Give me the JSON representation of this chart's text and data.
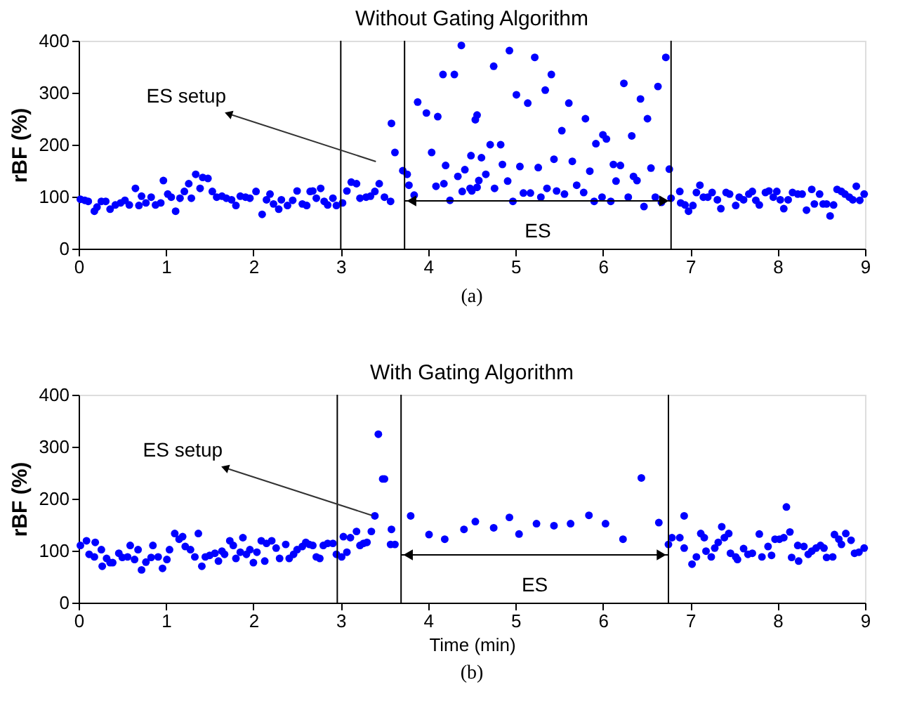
{
  "chart_data": [
    {
      "type": "scatter",
      "title": "Without Gating Algorithm",
      "ylabel": "rBF (%)",
      "marker": "circle",
      "color": "#0000ff",
      "x": [
        0.02,
        0.07,
        0.11,
        0.18,
        0.21,
        0.26,
        0.31,
        0.36,
        0.42,
        0.48,
        0.53,
        0.58,
        0.65,
        0.69,
        0.72,
        0.77,
        0.83,
        0.88,
        0.94,
        0.97,
        1.02,
        1.06,
        1.11,
        1.16,
        1.21,
        1.26,
        1.29,
        1.34,
        1.39,
        1.42,
        1.48,
        1.53,
        1.58,
        1.64,
        1.69,
        1.75,
        1.8,
        1.85,
        1.91,
        1.96,
        2.03,
        2.1,
        2.15,
        2.19,
        2.23,
        2.29,
        2.32,
        2.39,
        2.45,
        2.5,
        2.56,
        2.61,
        2.65,
        2.68,
        2.72,
        2.77,
        2.81,
        2.85,
        2.91,
        2.95,
        3.02,
        3.07,
        3.12,
        3.18,
        3.22,
        3.29,
        3.34,
        3.39,
        3.44,
        3.5,
        3.57,
        3.58,
        3.62,
        3.71,
        3.76,
        3.78,
        3.84,
        3.88,
        3.98,
        4.04,
        4.09,
        4.11,
        4.18,
        4.2,
        4.25,
        4.17,
        4.3,
        4.34,
        4.38,
        4.42,
        4.49,
        4.5,
        4.56,
        4.56,
        4.39,
        4.48,
        4.54,
        4.58,
        4.61,
        4.66,
        4.71,
        4.75,
        4.76,
        4.83,
        4.85,
        4.91,
        4.93,
        4.97,
        5.01,
        5.05,
        5.09,
        5.14,
        5.17,
        5.22,
        5.26,
        5.29,
        5.34,
        5.36,
        5.41,
        5.44,
        5.47,
        5.53,
        5.56,
        5.61,
        5.65,
        5.7,
        5.78,
        5.8,
        5.85,
        5.9,
        5.92,
        5.99,
        6.0,
        6.04,
        6.09,
        6.12,
        6.15,
        6.2,
        6.24,
        6.29,
        6.33,
        6.35,
        6.39,
        6.43,
        6.47,
        6.51,
        6.55,
        6.6,
        6.63,
        6.67,
        6.72,
        6.76,
        6.78,
        6.88,
        6.89,
        6.94,
        6.98,
        7.03,
        7.07,
        7.11,
        7.15,
        7.2,
        7.25,
        7.31,
        7.35,
        7.41,
        7.45,
        7.52,
        7.56,
        7.61,
        7.67,
        7.71,
        7.75,
        7.79,
        7.86,
        7.9,
        7.95,
        7.99,
        8.03,
        8.07,
        8.12,
        8.17,
        8.23,
        8.28,
        8.33,
        8.39,
        8.42,
        8.48,
        8.52,
        8.56,
        8.6,
        8.64,
        8.68,
        8.73,
        8.77,
        8.82,
        8.86,
        8.9,
        8.94,
        8.99
      ],
      "values": [
        95,
        93,
        91,
        72,
        80,
        91,
        91,
        76,
        84,
        88,
        93,
        84,
        116,
        83,
        101,
        88,
        99,
        84,
        88,
        131,
        105,
        99,
        72,
        97,
        110,
        125,
        97,
        143,
        116,
        137,
        135,
        110,
        99,
        101,
        97,
        94,
        83,
        101,
        99,
        97,
        110,
        66,
        94,
        105,
        86,
        76,
        94,
        83,
        93,
        111,
        86,
        83,
        110,
        111,
        97,
        116,
        91,
        84,
        97,
        83,
        88,
        111,
        128,
        125,
        97,
        99,
        101,
        110,
        125,
        99,
        91,
        241,
        185,
        150,
        143,
        122,
        103,
        282,
        261,
        185,
        120,
        254,
        125,
        160,
        93,
        335,
        335,
        139,
        391,
        152,
        179,
        111,
        257,
        118,
        110,
        116,
        248,
        131,
        175,
        143,
        200,
        351,
        116,
        200,
        162,
        130,
        381,
        91,
        296,
        158,
        107,
        280,
        107,
        368,
        156,
        99,
        305,
        116,
        335,
        172,
        111,
        227,
        105,
        280,
        168,
        122,
        108,
        250,
        149,
        91,
        202,
        99,
        219,
        211,
        91,
        162,
        130,
        160,
        318,
        99,
        217,
        139,
        131,
        288,
        81,
        250,
        155,
        99,
        312,
        89,
        368,
        153,
        97,
        110,
        88,
        84,
        72,
        83,
        108,
        122,
        99,
        99,
        108,
        94,
        77,
        108,
        105,
        83,
        99,
        94,
        105,
        110,
        93,
        84,
        108,
        111,
        99,
        110,
        94,
        77,
        94,
        108,
        105,
        105,
        74,
        114,
        86,
        105,
        86,
        86,
        63,
        84,
        114,
        110,
        105,
        99,
        94,
        120,
        93,
        105
      ],
      "xlim": [
        0,
        9
      ],
      "xticks": [
        0,
        1,
        2,
        3,
        4,
        5,
        6,
        7,
        8,
        9
      ],
      "ylim": [
        0,
        400
      ],
      "yticks": [
        0,
        100,
        200,
        300,
        400
      ],
      "ref_lines": [
        {
          "axis": "x",
          "value": 3.0,
          "color": "#000000"
        },
        {
          "axis": "x",
          "value": 3.73,
          "color": "#000000"
        },
        {
          "axis": "x",
          "value": 6.78,
          "color": "#000000"
        }
      ],
      "annotations": [
        "ES setup",
        "ES",
        "(a)"
      ]
    },
    {
      "type": "scatter",
      "title": "With Gating Algorithm",
      "ylabel": "rBF (%)",
      "xlabel": "Time (min)",
      "marker": "circle",
      "color": "#0000ff",
      "x": [
        0.02,
        0.09,
        0.12,
        0.18,
        0.19,
        0.26,
        0.27,
        0.32,
        0.36,
        0.39,
        0.46,
        0.5,
        0.56,
        0.59,
        0.64,
        0.68,
        0.72,
        0.77,
        0.83,
        0.85,
        0.91,
        0.96,
        1.01,
        1.04,
        1.1,
        1.15,
        1.19,
        1.22,
        1.28,
        1.33,
        1.37,
        1.41,
        1.45,
        1.5,
        1.56,
        1.6,
        1.64,
        1.67,
        1.73,
        1.77,
        1.8,
        1.85,
        1.88,
        1.92,
        1.96,
        2.0,
        2.04,
        2.09,
        2.13,
        2.15,
        2.21,
        2.26,
        2.3,
        2.37,
        2.41,
        2.46,
        2.5,
        2.56,
        2.6,
        2.64,
        2.68,
        2.72,
        2.76,
        2.8,
        2.85,
        2.91,
        2.95,
        3.01,
        3.03,
        3.07,
        3.11,
        3.18,
        3.22,
        3.26,
        3.3,
        3.35,
        3.39,
        3.43,
        3.48,
        3.5,
        3.57,
        3.58,
        3.62,
        3.8,
        4.01,
        4.19,
        4.41,
        4.54,
        4.75,
        4.93,
        5.04,
        5.24,
        5.44,
        5.63,
        5.84,
        6.03,
        6.23,
        6.44,
        6.64,
        6.75,
        6.79,
        6.88,
        6.93,
        6.93,
        7.02,
        7.07,
        7.12,
        7.16,
        7.18,
        7.24,
        7.28,
        7.32,
        7.36,
        7.39,
        7.44,
        7.46,
        7.52,
        7.54,
        7.61,
        7.66,
        7.71,
        7.79,
        7.82,
        7.89,
        7.93,
        7.97,
        8.02,
        8.07,
        8.1,
        8.14,
        8.16,
        8.24,
        8.23,
        8.3,
        8.35,
        8.39,
        8.44,
        8.49,
        8.53,
        8.56,
        8.63,
        8.65,
        8.7,
        8.73,
        8.78,
        8.84,
        8.88,
        8.93,
        8.99
      ],
      "values": [
        110,
        119,
        93,
        88,
        116,
        102,
        70,
        85,
        77,
        77,
        95,
        87,
        88,
        110,
        83,
        102,
        63,
        78,
        87,
        110,
        88,
        66,
        83,
        102,
        133,
        122,
        127,
        108,
        102,
        88,
        133,
        70,
        88,
        91,
        95,
        80,
        99,
        93,
        119,
        110,
        85,
        97,
        125,
        93,
        102,
        77,
        97,
        119,
        80,
        114,
        119,
        105,
        85,
        112,
        85,
        93,
        102,
        108,
        116,
        112,
        110,
        88,
        85,
        110,
        114,
        114,
        93,
        88,
        127,
        97,
        125,
        137,
        110,
        114,
        116,
        137,
        167,
        324,
        238,
        238,
        112,
        141,
        112,
        167,
        131,
        122,
        141,
        156,
        144,
        164,
        132,
        152,
        148,
        152,
        168,
        152,
        122,
        240,
        154,
        112,
        125,
        125,
        167,
        105,
        74,
        88,
        133,
        125,
        99,
        88,
        105,
        116,
        146,
        125,
        133,
        95,
        88,
        83,
        104,
        93,
        95,
        132,
        88,
        108,
        91,
        122,
        122,
        125,
        184,
        136,
        87,
        80,
        110,
        108,
        93,
        99,
        105,
        110,
        105,
        87,
        88,
        131,
        122,
        112,
        133,
        120,
        95,
        97,
        105
      ],
      "xlim": [
        0,
        9
      ],
      "xticks": [
        0,
        1,
        2,
        3,
        4,
        5,
        6,
        7,
        8,
        9
      ],
      "ylim": [
        0,
        400
      ],
      "yticks": [
        0,
        100,
        200,
        300,
        400
      ],
      "ref_lines": [
        {
          "axis": "x",
          "value": 2.96,
          "color": "#000000"
        },
        {
          "axis": "x",
          "value": 3.69,
          "color": "#000000"
        },
        {
          "axis": "x",
          "value": 6.75,
          "color": "#000000"
        }
      ],
      "annotations": [
        "ES setup",
        "ES",
        "(b)"
      ]
    }
  ]
}
